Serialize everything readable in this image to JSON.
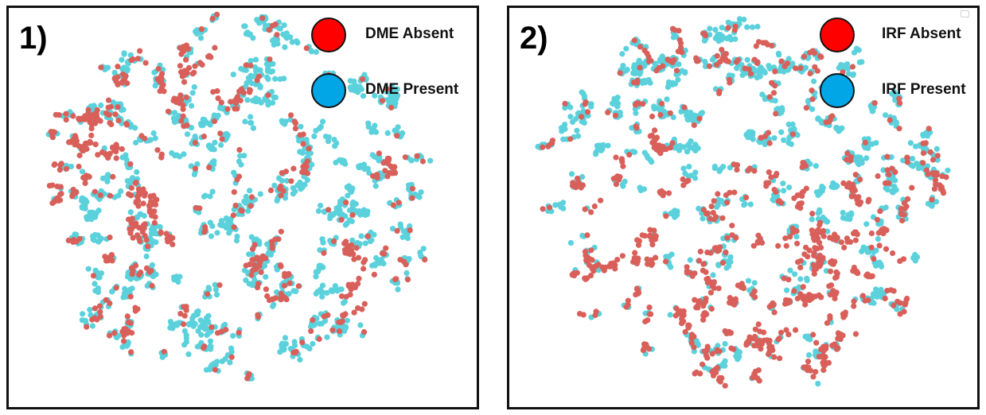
{
  "chart_data": [
    {
      "type": "scatter",
      "panel_label": "1)",
      "title": "",
      "xlabel": "",
      "ylabel": "",
      "grid": false,
      "axes_visible": false,
      "legend_position": "top-right",
      "series": [
        {
          "name": "DME Absent",
          "legend_color": "#ff0000",
          "point_color": "#d9605a",
          "spatial_bias": "top-left"
        },
        {
          "name": "DME Present",
          "legend_color": "#00a6e6",
          "point_color": "#5bd1dc",
          "spatial_bias": "right-bottom"
        }
      ]
    },
    {
      "type": "scatter",
      "panel_label": "2)",
      "title": "",
      "xlabel": "",
      "ylabel": "",
      "grid": false,
      "axes_visible": false,
      "legend_position": "top-right",
      "series": [
        {
          "name": "IRF Absent",
          "legend_color": "#ff0000",
          "point_color": "#d9605a",
          "spatial_bias": "bottom"
        },
        {
          "name": "IRF Present",
          "legend_color": "#00a6e6",
          "point_color": "#5bd1dc",
          "spatial_bias": "top"
        }
      ]
    }
  ]
}
